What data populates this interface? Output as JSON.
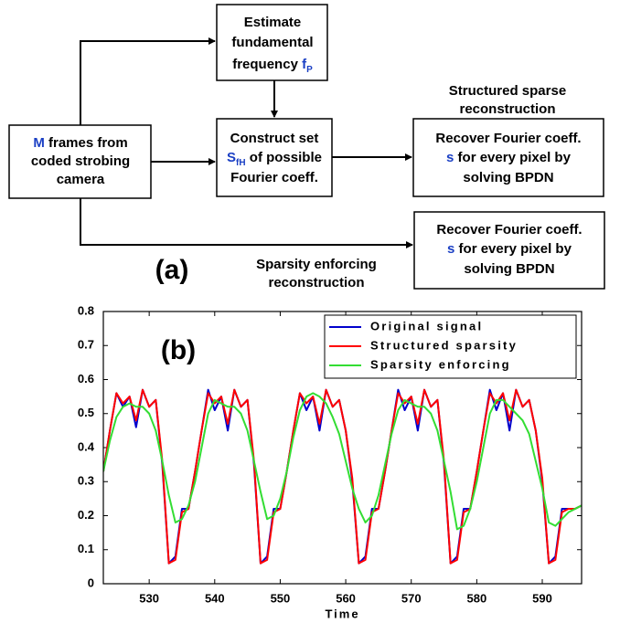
{
  "diagram": {
    "label": "(a)",
    "nodes": [
      {
        "lines": [
          [
            "M",
            "frames from"
          ],
          [
            "coded strobing"
          ],
          [
            "camera"
          ]
        ]
      },
      {
        "lines": [
          [
            "Estimate"
          ],
          [
            "fundamental"
          ],
          [
            "frequency",
            "f",
            "P"
          ]
        ]
      },
      {
        "lines": [
          [
            "Construct set"
          ],
          [
            "S",
            "fH",
            "of possible"
          ],
          [
            "Fourier coeff."
          ]
        ]
      },
      {
        "lines": [
          [
            "Recover Fourier coeff."
          ],
          [
            "s",
            "for every pixel by"
          ],
          [
            "solving BPDN"
          ]
        ]
      },
      {
        "lines": [
          [
            "Recover Fourier coeff."
          ],
          [
            "s",
            "for every pixel by"
          ],
          [
            "solving BPDN"
          ]
        ]
      }
    ],
    "edge_labels": [
      [
        "Structured sparse",
        "reconstruction"
      ],
      [
        "Sparsity enforcing",
        "reconstruction"
      ]
    ]
  },
  "chart_data": {
    "type": "line",
    "annotation": "(b)",
    "xlabel": "Time",
    "x": [
      523,
      524,
      525,
      526,
      527,
      528,
      529,
      530,
      531,
      532,
      533,
      534,
      535,
      536,
      537,
      538,
      539,
      540,
      541,
      542,
      543,
      544,
      545,
      546,
      547,
      548,
      549,
      550,
      551,
      552,
      553,
      554,
      555,
      556,
      557,
      558,
      559,
      560,
      561,
      562,
      563,
      564,
      565,
      566,
      567,
      568,
      569,
      570,
      571,
      572,
      573,
      574,
      575,
      576,
      577,
      578,
      579,
      580,
      581,
      582,
      583,
      584,
      585,
      586,
      587,
      588,
      589,
      590,
      591,
      592,
      593,
      594,
      595,
      596
    ],
    "series": [
      {
        "name": "Original signal",
        "color": "#0000cc",
        "values": [
          0.33,
          0.45,
          0.56,
          0.52,
          0.55,
          0.46,
          0.57,
          0.52,
          0.54,
          0.35,
          0.06,
          0.08,
          0.22,
          0.22,
          0.33,
          0.45,
          0.57,
          0.51,
          0.55,
          0.45,
          0.57,
          0.52,
          0.54,
          0.35,
          0.06,
          0.08,
          0.22,
          0.22,
          0.33,
          0.45,
          0.56,
          0.51,
          0.55,
          0.45,
          0.57,
          0.52,
          0.54,
          0.45,
          0.3,
          0.06,
          0.08,
          0.22,
          0.22,
          0.33,
          0.45,
          0.57,
          0.51,
          0.55,
          0.45,
          0.57,
          0.52,
          0.54,
          0.35,
          0.06,
          0.08,
          0.22,
          0.22,
          0.33,
          0.45,
          0.57,
          0.51,
          0.56,
          0.45,
          0.57,
          0.52,
          0.54,
          0.45,
          0.3,
          0.06,
          0.08,
          0.22,
          0.22,
          0.22,
          0.23
        ]
      },
      {
        "name": "Structured sparsity",
        "color": "#ff0000",
        "values": [
          0.33,
          0.45,
          0.56,
          0.53,
          0.55,
          0.48,
          0.57,
          0.52,
          0.54,
          0.36,
          0.06,
          0.07,
          0.21,
          0.22,
          0.33,
          0.45,
          0.56,
          0.53,
          0.55,
          0.47,
          0.57,
          0.52,
          0.54,
          0.36,
          0.06,
          0.07,
          0.21,
          0.22,
          0.33,
          0.45,
          0.56,
          0.53,
          0.55,
          0.47,
          0.57,
          0.52,
          0.54,
          0.45,
          0.31,
          0.06,
          0.07,
          0.21,
          0.22,
          0.33,
          0.45,
          0.56,
          0.53,
          0.55,
          0.47,
          0.57,
          0.52,
          0.54,
          0.36,
          0.06,
          0.07,
          0.21,
          0.22,
          0.33,
          0.45,
          0.56,
          0.53,
          0.56,
          0.48,
          0.57,
          0.52,
          0.54,
          0.45,
          0.31,
          0.06,
          0.07,
          0.21,
          0.22,
          0.22,
          0.23
        ]
      },
      {
        "name": "Sparsity enforcing",
        "color": "#33dd33",
        "values": [
          0.33,
          0.42,
          0.49,
          0.52,
          0.53,
          0.52,
          0.52,
          0.5,
          0.45,
          0.36,
          0.26,
          0.18,
          0.19,
          0.23,
          0.3,
          0.4,
          0.5,
          0.54,
          0.53,
          0.52,
          0.52,
          0.5,
          0.45,
          0.36,
          0.27,
          0.19,
          0.2,
          0.25,
          0.33,
          0.43,
          0.51,
          0.55,
          0.56,
          0.55,
          0.53,
          0.49,
          0.44,
          0.36,
          0.28,
          0.22,
          0.18,
          0.2,
          0.26,
          0.35,
          0.44,
          0.51,
          0.54,
          0.53,
          0.52,
          0.52,
          0.5,
          0.45,
          0.36,
          0.27,
          0.16,
          0.17,
          0.22,
          0.3,
          0.4,
          0.5,
          0.54,
          0.54,
          0.52,
          0.5,
          0.48,
          0.44,
          0.36,
          0.28,
          0.18,
          0.17,
          0.19,
          0.21,
          0.22,
          0.23
        ]
      }
    ],
    "xlim": [
      523,
      596
    ],
    "xticks": [
      530,
      540,
      550,
      560,
      570,
      580,
      590
    ],
    "ylim": [
      0,
      0.8
    ],
    "yticks": [
      0,
      0.1,
      0.2,
      0.3,
      0.4,
      0.5,
      0.6,
      0.7,
      0.8
    ],
    "legend": "upper right"
  }
}
